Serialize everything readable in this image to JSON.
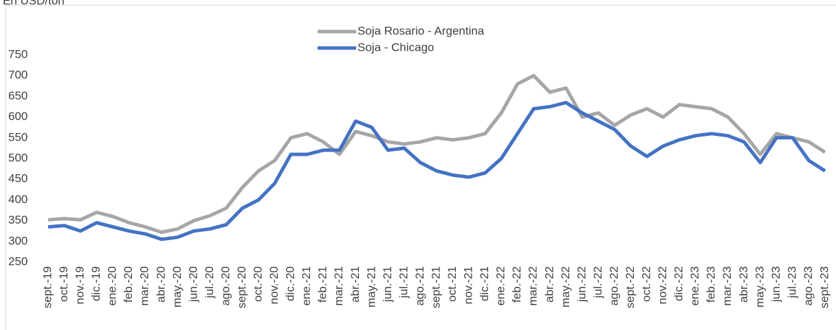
{
  "chart_data": {
    "type": "line",
    "subtitle": "En USD/ton",
    "categories": [
      "sept.-19",
      "oct.-19",
      "nov.-19",
      "dic.-19",
      "ene.-20",
      "feb.-20",
      "mar.-20",
      "abr.-20",
      "may.-20",
      "jun.-20",
      "jul.-20",
      "ago.-20",
      "sept.-20",
      "oct.-20",
      "nov.-20",
      "dic.-20",
      "ene.-21",
      "feb.-21",
      "mar.-21",
      "abr.-21",
      "may.-21",
      "jun.-21",
      "jul.-21",
      "ago.-21",
      "sept.-21",
      "oct.-21",
      "nov.-21",
      "dic.-21",
      "ene.-22",
      "feb.-22",
      "mar.-22",
      "abr.-22",
      "may.-22",
      "jun.-22",
      "jul.-22",
      "ago.-22",
      "sept.-22",
      "oct.-22",
      "nov.-22",
      "dic.-22",
      "ene.-23",
      "feb.-23",
      "mar.-23",
      "abr.-23",
      "may.-23",
      "jun.-23",
      "jul.-23",
      "ago.-23",
      "sept.-23"
    ],
    "series": [
      {
        "name": "Soja Rosario - Argentina",
        "color": "#a6a6a6",
        "values": [
          352,
          355,
          352,
          370,
          360,
          345,
          335,
          322,
          330,
          350,
          362,
          380,
          430,
          470,
          495,
          550,
          560,
          540,
          510,
          565,
          555,
          540,
          535,
          540,
          550,
          545,
          550,
          560,
          610,
          680,
          700,
          660,
          670,
          600,
          610,
          580,
          605,
          620,
          600,
          630,
          625,
          620,
          600,
          560,
          510,
          560,
          550,
          540,
          515
        ]
      },
      {
        "name": "Soja - Chicago",
        "color": "#4472c4",
        "values": [
          335,
          338,
          325,
          345,
          335,
          325,
          318,
          305,
          310,
          325,
          330,
          340,
          380,
          400,
          440,
          510,
          510,
          520,
          520,
          590,
          575,
          520,
          525,
          490,
          470,
          460,
          455,
          465,
          500,
          560,
          620,
          625,
          635,
          610,
          590,
          570,
          530,
          505,
          530,
          545,
          555,
          560,
          555,
          540,
          490,
          550,
          550,
          495,
          470
        ]
      }
    ],
    "ylim": [
      250,
      750
    ],
    "yticks": [
      250,
      300,
      350,
      400,
      450,
      500,
      550,
      600,
      650,
      700,
      750
    ]
  }
}
